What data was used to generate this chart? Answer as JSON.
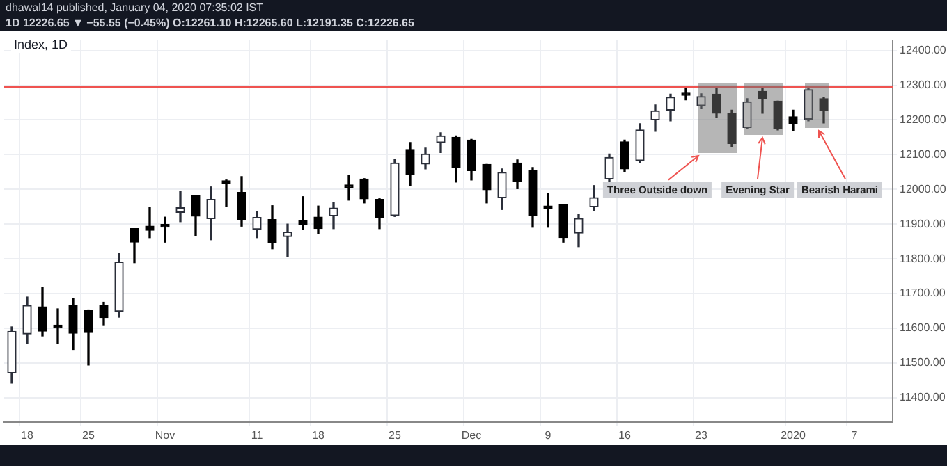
{
  "chart_data": {
    "type": "candlestick",
    "title": "Index, 1D",
    "subtitle": "1D 12226.65 ▼ −55.55 (−0.45%) O:12261.10 H:12265.60 L:12191.35 C:12226.65",
    "annotations": [
      "dhawal14 published, January 04, 2020 07:35:02 IST",
      "Three Outside down",
      "Evening Star",
      "Bearish Harami"
    ],
    "categories": [
      null,
      "18",
      null,
      null,
      null,
      "25",
      null,
      null,
      null,
      null,
      "Nov",
      null,
      null,
      null,
      null,
      null,
      "11",
      null,
      null,
      null,
      "18",
      null,
      null,
      null,
      null,
      "25",
      null,
      null,
      null,
      null,
      "Dec",
      null,
      null,
      null,
      null,
      "9",
      null,
      null,
      null,
      null,
      "16",
      null,
      null,
      null,
      null,
      "23",
      null,
      null,
      null,
      null,
      null,
      "2020",
      null,
      null,
      null,
      "7",
      null,
      null
    ],
    "ohlc": [
      [
        11471,
        11604,
        11442,
        11591
      ],
      [
        11584,
        11690,
        11556,
        11666
      ],
      [
        11662,
        11718,
        11578,
        11592
      ],
      [
        11608,
        11656,
        11557,
        11601
      ],
      [
        11666,
        11686,
        11539,
        11586
      ],
      [
        11651,
        11653,
        11494,
        11588
      ],
      [
        11665,
        11675,
        11610,
        11631
      ],
      [
        11649,
        11815,
        11632,
        11791
      ],
      [
        11887,
        11887,
        11789,
        11848
      ],
      [
        11894,
        11949,
        11861,
        11882
      ],
      [
        11894,
        11920,
        11848,
        11891
      ],
      [
        11934,
        11994,
        11907,
        11947
      ],
      [
        11981,
        11983,
        11867,
        11923
      ],
      [
        11916,
        12007,
        11855,
        11971
      ],
      [
        12025,
        12027,
        11950,
        12016
      ],
      [
        11991,
        12037,
        11894,
        11913
      ],
      [
        11885,
        11937,
        11861,
        11919
      ],
      [
        11913,
        11953,
        11829,
        11846
      ],
      [
        11864,
        11900,
        11807,
        11877
      ],
      [
        11910,
        11979,
        11885,
        11899
      ],
      [
        11920,
        11952,
        11872,
        11887
      ],
      [
        11924,
        11963,
        11887,
        11946
      ],
      [
        12008,
        12041,
        11969,
        12005
      ],
      [
        12030,
        12031,
        11961,
        11973
      ],
      [
        11971,
        11973,
        11887,
        11920
      ],
      [
        11925,
        12086,
        11922,
        12076
      ],
      [
        12115,
        12135,
        12011,
        12043
      ],
      [
        12073,
        12119,
        12059,
        12102
      ],
      [
        12135,
        12163,
        12106,
        12154
      ],
      [
        12150,
        12154,
        12021,
        12062
      ],
      [
        12142,
        12144,
        12027,
        12054
      ],
      [
        12072,
        12072,
        11961,
        11999
      ],
      [
        11976,
        12059,
        11942,
        12049
      ],
      [
        12076,
        12085,
        12002,
        12024
      ],
      [
        12054,
        12063,
        11891,
        11926
      ],
      [
        11946,
        11988,
        11891,
        11944
      ],
      [
        11955,
        11956,
        11848,
        11861
      ],
      [
        11874,
        11929,
        11835,
        11916
      ],
      [
        11950,
        12011,
        11939,
        11976
      ],
      [
        12030,
        12102,
        12017,
        12092
      ],
      [
        12137,
        12142,
        12050,
        12059
      ],
      [
        12083,
        12189,
        12076,
        12171
      ],
      [
        12200,
        12243,
        12167,
        12226
      ],
      [
        12228,
        12274,
        12197,
        12265
      ],
      [
        12275,
        12297,
        12258,
        12271
      ],
      [
        12241,
        12275,
        12232,
        12267
      ],
      [
        12274,
        12291,
        12206,
        12219
      ],
      [
        12219,
        12228,
        12122,
        12132
      ],
      [
        12178,
        12261,
        12174,
        12252
      ],
      [
        12282,
        12293,
        12219,
        12261
      ],
      [
        12254,
        12254,
        12171,
        12174
      ],
      [
        12209,
        12228,
        12170,
        12189
      ],
      [
        12202,
        12291,
        12197,
        12287
      ],
      [
        12261.1,
        12265.6,
        12191.35,
        12226.65
      ],
      null,
      null,
      null,
      null
    ],
    "ylim": [
      11330,
      12430
    ],
    "yticks": [
      {
        "value": 11400,
        "label": "11400.00"
      },
      {
        "value": 11500,
        "label": "11500.00"
      },
      {
        "value": 11600,
        "label": "11600.00"
      },
      {
        "value": 11700,
        "label": "11700.00"
      },
      {
        "value": 11800,
        "label": "11800.00"
      },
      {
        "value": 11900,
        "label": "11900.00"
      },
      {
        "value": 12000,
        "label": "12000.00"
      },
      {
        "value": 12100,
        "label": "12100.00"
      },
      {
        "value": 12200,
        "label": "12200.00"
      },
      {
        "value": 12300,
        "label": "12300.00"
      },
      {
        "value": 12400,
        "label": "12400.00"
      }
    ],
    "ref_lines": [
      {
        "axis": "y",
        "value": 12295,
        "color": "#ef5350"
      }
    ],
    "grid": true,
    "legend": false
  }
}
